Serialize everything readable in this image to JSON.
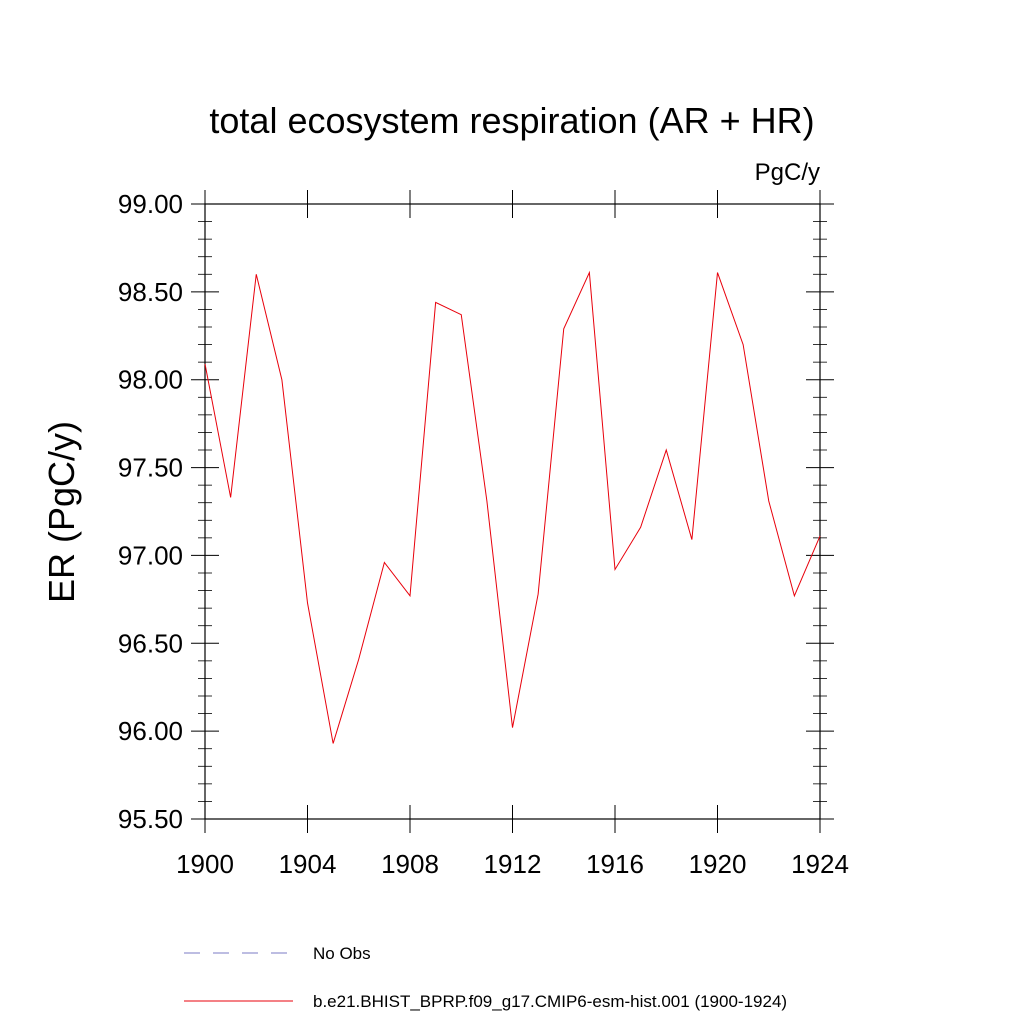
{
  "chart_data": {
    "type": "line",
    "title": "total ecosystem respiration (AR + HR)",
    "units_label": "PgC/y",
    "ylabel": "ER  (PgC/y)",
    "xlabel": "",
    "xlim": [
      1900,
      1924
    ],
    "ylim": [
      95.5,
      99.0
    ],
    "x_ticks": [
      1900,
      1904,
      1908,
      1912,
      1916,
      1920,
      1924
    ],
    "x_tick_labels": [
      "1900",
      "1904",
      "1908",
      "1912",
      "1916",
      "1920",
      "1924"
    ],
    "y_ticks": [
      95.5,
      96.0,
      96.5,
      97.0,
      97.5,
      98.0,
      98.5,
      99.0
    ],
    "y_tick_labels": [
      "95.50",
      "96.00",
      "96.50",
      "97.00",
      "97.50",
      "98.00",
      "98.50",
      "99.00"
    ],
    "grid": false,
    "legend_position": "bottom",
    "legend": [
      {
        "label": "No Obs",
        "style": "dashed",
        "color": "#7b7bc4"
      },
      {
        "label": "b.e21.BHIST_BPRP.f09_g17.CMIP6-esm-hist.001 (1900-1924)",
        "style": "solid",
        "color": "#e8000b"
      }
    ],
    "series": [
      {
        "color": "#e8000b",
        "x": [
          1900,
          1901,
          1902,
          1903,
          1904,
          1905,
          1906,
          1907,
          1908,
          1909,
          1910,
          1911,
          1912,
          1913,
          1914,
          1915,
          1916,
          1917,
          1918,
          1919,
          1920,
          1921,
          1922,
          1923,
          1924
        ],
        "values": [
          98.09,
          97.33,
          98.6,
          98.0,
          96.73,
          95.93,
          96.41,
          96.96,
          96.77,
          98.44,
          98.37,
          97.31,
          96.02,
          96.78,
          98.29,
          98.61,
          96.92,
          97.16,
          97.6,
          97.09,
          98.61,
          98.2,
          97.31,
          96.77,
          97.11
        ]
      }
    ]
  }
}
